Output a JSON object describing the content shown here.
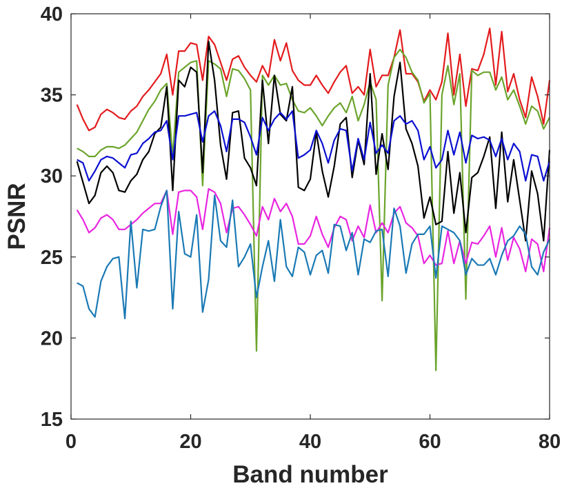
{
  "chart_data": {
    "type": "line",
    "title": "",
    "xlabel": "Band number",
    "ylabel": "PSNR",
    "xlim": [
      0,
      80
    ],
    "ylim": [
      15,
      40
    ],
    "xticks": [
      "0",
      "20",
      "40",
      "60",
      "80"
    ],
    "yticks": [
      "15",
      "20",
      "25",
      "30",
      "35",
      "40"
    ],
    "grid": false,
    "legend": "none",
    "x": [
      1,
      2,
      3,
      4,
      5,
      6,
      7,
      8,
      9,
      10,
      11,
      12,
      13,
      14,
      15,
      16,
      17,
      18,
      19,
      20,
      21,
      22,
      23,
      24,
      25,
      26,
      27,
      28,
      29,
      30,
      31,
      32,
      33,
      34,
      35,
      36,
      37,
      38,
      39,
      40,
      41,
      42,
      43,
      44,
      45,
      46,
      47,
      48,
      49,
      50,
      51,
      52,
      53,
      54,
      55,
      56,
      57,
      58,
      59,
      60,
      61,
      62,
      63,
      64,
      65,
      66,
      67,
      68,
      69,
      70,
      71,
      72,
      73,
      74,
      75,
      76,
      77,
      78,
      79,
      80
    ],
    "series": [
      {
        "color": "#e31a1c",
        "values": [
          34.4,
          33.5,
          32.8,
          33.0,
          33.8,
          34.1,
          33.9,
          33.6,
          33.5,
          34.0,
          34.3,
          34.9,
          35.3,
          35.8,
          36.3,
          37.5,
          35.0,
          37.7,
          37.7,
          38.2,
          38.1,
          35.9,
          38.6,
          38.1,
          37.0,
          35.9,
          37.2,
          37.4,
          36.7,
          36.2,
          35.8,
          36.8,
          36.1,
          38.4,
          37.1,
          38.2,
          36.5,
          35.9,
          35.6,
          35.6,
          36.2,
          35.6,
          35.1,
          35.8,
          36.4,
          36.8,
          35.1,
          35.5,
          35.0,
          37.8,
          35.5,
          36.2,
          36.2,
          37.3,
          39.0,
          36.3,
          36.3,
          35.8,
          34.6,
          35.3,
          34.7,
          35.8,
          38.8,
          35.0,
          37.5,
          34.3,
          36.6,
          36.5,
          37.5,
          39.1,
          35.6,
          38.9,
          35.2,
          36.3,
          34.7,
          33.6,
          36.1,
          34.9,
          33.2,
          35.9
        ]
      },
      {
        "color": "#6ba42c",
        "values": [
          31.7,
          31.5,
          31.2,
          31.2,
          31.6,
          31.8,
          31.8,
          31.7,
          31.9,
          32.3,
          32.7,
          33.4,
          34.1,
          34.6,
          35.3,
          35.7,
          31.2,
          36.4,
          36.7,
          37.0,
          37.1,
          29.4,
          37.1,
          36.9,
          36.6,
          34.9,
          36.6,
          36.5,
          36.0,
          35.3,
          19.2,
          36.2,
          35.6,
          36.2,
          35.6,
          35.7,
          34.7,
          34.0,
          33.9,
          34.2,
          33.7,
          33.1,
          33.7,
          34.2,
          34.5,
          33.9,
          34.9,
          33.4,
          34.4,
          35.8,
          34.7,
          22.3,
          35.6,
          37.3,
          37.8,
          37.3,
          36.4,
          35.9,
          34.5,
          35.1,
          18.0,
          35.0,
          36.8,
          34.4,
          36.3,
          22.4,
          36.5,
          36.2,
          36.4,
          36.4,
          35.3,
          36.1,
          34.7,
          35.3,
          34.3,
          33.2,
          34.3,
          34.0,
          32.9,
          33.6
        ]
      },
      {
        "color": "#000000",
        "values": [
          30.9,
          29.6,
          28.3,
          28.8,
          30.2,
          30.6,
          30.2,
          29.1,
          29.0,
          29.7,
          30.1,
          31.0,
          31.5,
          32.6,
          33.0,
          35.5,
          29.1,
          35.9,
          35.5,
          36.7,
          36.4,
          30.2,
          38.3,
          35.9,
          31.9,
          29.8,
          33.9,
          34.0,
          31.1,
          30.5,
          29.4,
          35.9,
          32.0,
          36.2,
          33.8,
          33.4,
          35.5,
          29.3,
          29.1,
          29.8,
          32.7,
          30.3,
          28.7,
          30.6,
          33.2,
          33.6,
          29.9,
          32.2,
          30.7,
          36.3,
          30.1,
          32.6,
          30.4,
          34.9,
          37.0,
          32.9,
          32.0,
          30.6,
          27.4,
          28.7,
          27.0,
          27.2,
          31.5,
          27.7,
          30.2,
          26.5,
          29.9,
          30.2,
          31.2,
          32.4,
          28.0,
          32.7,
          28.4,
          31.0,
          28.5,
          26.0,
          30.3,
          28.9,
          26.0,
          31.6
        ]
      },
      {
        "color": "#0a0fd0",
        "values": [
          31.0,
          30.8,
          29.7,
          30.3,
          31.0,
          31.2,
          31.1,
          30.8,
          30.5,
          31.3,
          31.4,
          32.0,
          32.3,
          32.7,
          32.8,
          33.4,
          31.0,
          33.7,
          33.7,
          33.8,
          33.9,
          32.1,
          33.7,
          34.0,
          33.1,
          31.5,
          33.5,
          33.5,
          33.3,
          32.4,
          31.3,
          33.6,
          32.8,
          33.5,
          33.9,
          33.5,
          34.0,
          31.1,
          31.3,
          31.6,
          32.8,
          32.0,
          30.8,
          32.2,
          32.9,
          32.8,
          30.3,
          32.3,
          31.0,
          33.3,
          31.4,
          31.9,
          31.4,
          33.4,
          33.7,
          33.2,
          33.4,
          32.8,
          31.0,
          31.8,
          30.5,
          31.0,
          32.8,
          31.3,
          32.7,
          30.8,
          32.5,
          32.3,
          32.4,
          32.2,
          31.2,
          32.3,
          31.0,
          32.0,
          31.5,
          29.7,
          31.3,
          31.2,
          29.7,
          30.9
        ]
      },
      {
        "color": "#e825e0",
        "values": [
          27.9,
          27.3,
          26.5,
          26.8,
          27.4,
          27.6,
          27.3,
          26.7,
          26.7,
          27.0,
          27.3,
          27.7,
          28.0,
          28.3,
          28.3,
          29.1,
          26.4,
          29.0,
          29.1,
          29.1,
          28.7,
          26.7,
          29.2,
          29.0,
          28.3,
          26.5,
          28.0,
          28.1,
          27.6,
          27.0,
          26.3,
          28.1,
          27.3,
          28.6,
          27.8,
          28.3,
          27.5,
          25.8,
          25.8,
          26.3,
          27.5,
          26.4,
          25.6,
          26.8,
          27.5,
          27.3,
          26.0,
          26.9,
          26.2,
          28.2,
          26.5,
          27.1,
          26.5,
          27.7,
          28.1,
          27.1,
          26.8,
          26.3,
          24.6,
          25.1,
          24.5,
          24.6,
          26.6,
          24.6,
          26.0,
          24.6,
          25.9,
          25.8,
          26.3,
          26.9,
          25.0,
          26.8,
          24.8,
          26.2,
          25.5,
          24.1,
          26.1,
          25.8,
          24.1,
          26.8
        ]
      },
      {
        "color": "#1a79b5",
        "values": [
          23.4,
          23.2,
          21.8,
          21.3,
          23.5,
          24.4,
          24.9,
          25.0,
          21.2,
          27.2,
          23.1,
          26.7,
          26.6,
          26.7,
          28.1,
          29.1,
          21.8,
          27.8,
          25.2,
          25.0,
          27.6,
          21.6,
          23.6,
          28.8,
          26.0,
          25.6,
          28.5,
          24.4,
          25.0,
          25.8,
          22.5,
          24.4,
          26.0,
          23.5,
          27.3,
          24.4,
          23.8,
          25.6,
          25.3,
          23.9,
          25.1,
          25.4,
          24.0,
          27.0,
          26.9,
          25.4,
          26.5,
          23.9,
          26.1,
          25.9,
          26.6,
          26.7,
          23.8,
          28.0,
          26.9,
          24.0,
          25.8,
          26.4,
          26.4,
          26.9,
          23.7,
          26.9,
          26.7,
          26.5,
          26.0,
          23.9,
          24.9,
          24.5,
          24.5,
          24.9,
          23.9,
          25.1,
          26.0,
          26.3,
          26.9,
          26.4,
          24.4,
          23.9,
          25.3,
          26.1
        ]
      }
    ]
  }
}
